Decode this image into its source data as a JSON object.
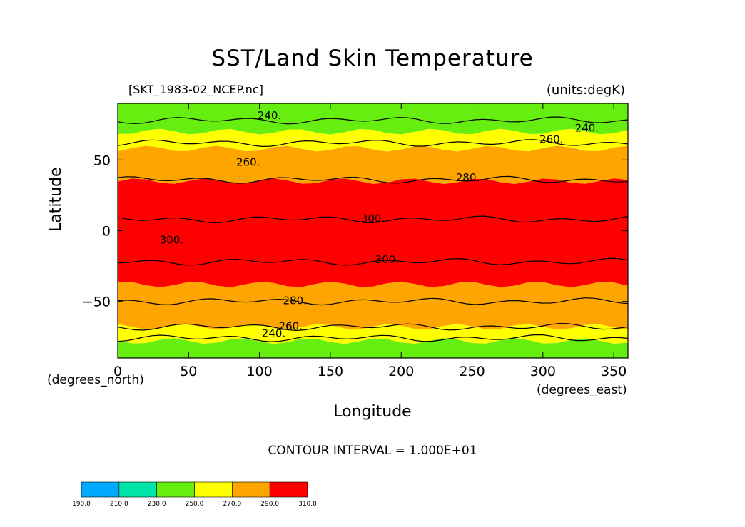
{
  "header": {
    "title": "SST/Land Skin Temperature",
    "file_label": "[SKT_1983-02_NCEP.nc]",
    "units_label": "(units:degK)"
  },
  "footer": {
    "contour_interval": "CONTOUR INTERVAL = 1.000E+01"
  },
  "chart_data": {
    "type": "heatmap",
    "title": "SST/Land Skin Temperature",
    "xlabel": "Longitude",
    "ylabel": "Latitude",
    "x_unit_label": "(degrees_east)",
    "y_unit_label": "(degrees_north)",
    "xlim": [
      0,
      360
    ],
    "ylim": [
      -90,
      90
    ],
    "x_ticks": [
      0,
      50,
      100,
      150,
      200,
      250,
      300,
      350
    ],
    "y_ticks": [
      50,
      0,
      -50
    ],
    "contour_interval": 10,
    "colorbar": {
      "levels": [
        "190.0",
        "210.0",
        "230.0",
        "250.0",
        "270.0",
        "290.0",
        "310.0"
      ],
      "colors": [
        "#00aaff",
        "#00e6aa",
        "#66ee11",
        "#ffff00",
        "#ffa500",
        "#ff0000"
      ]
    },
    "bands_celsius_free": [
      {
        "lat_from": 90,
        "lat_to": 70,
        "range": "230-250",
        "color": "#66ee11"
      },
      {
        "lat_from": 70,
        "lat_to": 58,
        "range": "250-270",
        "color": "#ffff00"
      },
      {
        "lat_from": 58,
        "lat_to": 35,
        "range": "270-290",
        "color": "#ffa500"
      },
      {
        "lat_from": 35,
        "lat_to": -38,
        "range": "290-310",
        "color": "#ff0000"
      },
      {
        "lat_from": -38,
        "lat_to": -68,
        "range": "270-290",
        "color": "#ffa500"
      },
      {
        "lat_from": -68,
        "lat_to": -78,
        "range": "250-270",
        "color": "#ffff00"
      },
      {
        "lat_from": -78,
        "lat_to": -90,
        "range": "230-250",
        "color": "#66ee11"
      }
    ],
    "contour_labels": [
      {
        "text": "240.",
        "lon": 107,
        "lat": 80
      },
      {
        "text": "260.",
        "lon": 92,
        "lat": 47
      },
      {
        "text": "280.",
        "lon": 247,
        "lat": 36
      },
      {
        "text": "260.",
        "lon": 306,
        "lat": 63
      },
      {
        "text": "240.",
        "lon": 331,
        "lat": 71
      },
      {
        "text": "300.",
        "lon": 180,
        "lat": 7
      },
      {
        "text": "300.",
        "lon": 190,
        "lat": -22
      },
      {
        "text": "280.",
        "lon": 125,
        "lat": -51
      },
      {
        "text": "260.",
        "lon": 122,
        "lat": -69
      },
      {
        "text": "240.",
        "lon": 110,
        "lat": -74
      },
      {
        "text": "300.",
        "lon": 38,
        "lat": -8
      }
    ]
  }
}
